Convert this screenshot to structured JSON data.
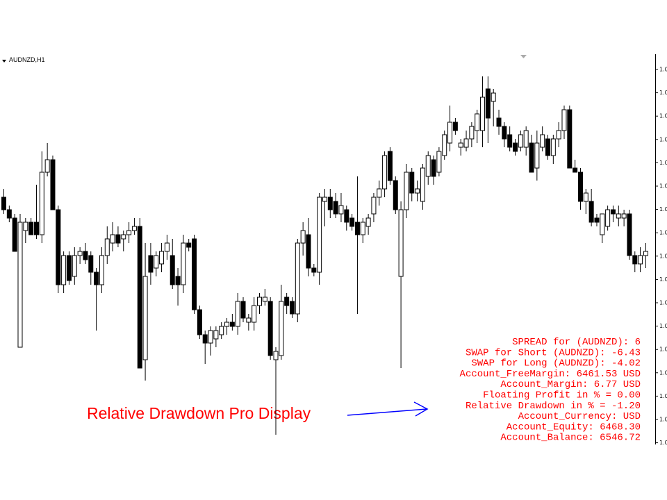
{
  "chart_data": {
    "type": "candlestick",
    "symbol": "AUDNZD,H1",
    "ylim": [
      0,
      100
    ],
    "ohlc": [
      [
        61,
        63,
        57,
        58
      ],
      [
        58,
        59,
        55,
        56
      ],
      [
        56,
        57,
        48,
        48
      ],
      [
        25,
        57,
        25,
        55
      ],
      [
        53,
        56,
        50,
        55
      ],
      [
        55,
        56,
        52,
        52
      ],
      [
        55,
        64,
        51,
        52
      ],
      [
        52,
        72,
        50,
        67
      ],
      [
        67,
        74,
        66,
        70
      ],
      [
        70,
        71,
        58,
        58
      ],
      [
        58,
        59,
        38,
        40
      ],
      [
        40,
        48,
        38,
        47
      ],
      [
        47,
        48,
        40,
        41
      ],
      [
        42,
        49,
        40,
        47
      ],
      [
        47,
        49,
        45,
        48
      ],
      [
        48,
        50,
        45,
        46
      ],
      [
        47,
        48,
        40,
        43
      ],
      [
        43,
        44,
        29,
        40
      ],
      [
        40,
        49,
        38,
        47
      ],
      [
        47,
        54,
        45,
        51
      ],
      [
        50,
        55,
        48,
        52
      ],
      [
        52,
        54,
        49,
        50
      ],
      [
        51,
        53,
        48,
        52
      ],
      [
        52,
        55,
        50,
        53
      ],
      [
        53,
        56,
        52,
        54
      ],
      [
        54,
        56,
        20,
        20
      ],
      [
        22,
        50,
        17,
        42
      ],
      [
        47,
        50,
        40,
        43
      ],
      [
        44,
        48,
        42,
        47
      ],
      [
        45,
        50,
        43,
        48
      ],
      [
        48,
        52,
        46,
        50
      ],
      [
        47,
        51,
        39,
        40
      ],
      [
        42,
        44,
        35,
        40
      ],
      [
        40,
        52,
        38,
        50
      ],
      [
        50,
        51,
        48,
        49
      ],
      [
        51,
        52,
        33,
        34
      ],
      [
        34,
        35,
        27,
        28
      ],
      [
        28,
        29,
        21,
        26
      ],
      [
        26,
        30,
        23,
        29
      ],
      [
        27,
        30,
        25,
        29
      ],
      [
        28,
        31,
        27,
        30
      ],
      [
        30,
        32,
        28,
        31
      ],
      [
        31,
        33,
        29,
        30
      ],
      [
        30,
        38,
        28,
        36
      ],
      [
        36,
        37,
        31,
        32
      ],
      [
        31,
        33,
        29,
        32
      ],
      [
        31,
        37,
        29,
        35
      ],
      [
        35,
        38,
        33,
        37
      ],
      [
        36,
        39,
        35,
        37
      ],
      [
        36,
        37,
        22,
        23
      ],
      [
        22,
        25,
        4,
        24
      ],
      [
        23,
        40,
        22,
        36
      ],
      [
        37,
        38,
        33,
        35
      ],
      [
        36,
        37,
        32,
        33
      ],
      [
        33,
        51,
        31,
        50
      ],
      [
        50,
        55,
        47,
        53
      ],
      [
        52,
        56,
        42,
        44
      ],
      [
        44,
        45,
        42,
        43
      ],
      [
        43,
        62,
        40,
        61
      ],
      [
        60,
        63,
        54,
        61
      ],
      [
        61,
        63,
        56,
        58
      ],
      [
        60,
        62,
        56,
        57
      ],
      [
        57,
        62,
        55,
        59
      ],
      [
        58,
        59,
        53,
        55
      ],
      [
        56,
        57,
        53,
        54
      ],
      [
        55,
        66,
        33,
        52
      ],
      [
        52,
        56,
        50,
        55
      ],
      [
        54,
        57,
        52,
        56
      ],
      [
        57,
        62,
        55,
        61
      ],
      [
        61,
        65,
        59,
        63
      ],
      [
        63,
        72,
        61,
        71
      ],
      [
        72,
        73,
        64,
        65
      ],
      [
        65,
        66,
        57,
        58
      ],
      [
        42,
        60,
        20,
        58
      ],
      [
        58,
        69,
        56,
        67
      ],
      [
        67,
        68,
        60,
        62
      ],
      [
        62,
        65,
        60,
        63
      ],
      [
        60,
        69,
        58,
        68
      ],
      [
        66,
        72,
        64,
        71
      ],
      [
        70,
        71,
        64,
        66
      ],
      [
        67,
        73,
        66,
        72
      ],
      [
        71,
        77,
        70,
        76
      ],
      [
        74,
        83,
        72,
        79
      ],
      [
        79,
        80,
        76,
        77
      ],
      [
        73,
        75,
        71,
        74
      ],
      [
        73,
        77,
        72,
        75
      ],
      [
        75,
        79,
        73,
        78
      ],
      [
        77,
        82,
        74,
        81
      ],
      [
        77,
        90,
        73,
        85
      ],
      [
        87,
        90,
        74,
        80
      ],
      [
        84,
        87,
        78,
        86
      ],
      [
        80,
        82,
        76,
        78
      ],
      [
        78,
        79,
        73,
        75
      ],
      [
        76,
        78,
        72,
        73
      ],
      [
        74,
        75,
        71,
        72
      ],
      [
        73,
        77,
        72,
        76
      ],
      [
        73,
        78,
        71,
        77
      ],
      [
        74,
        76,
        67,
        67
      ],
      [
        68,
        77,
        65,
        74
      ],
      [
        73,
        78,
        72,
        76
      ],
      [
        75,
        76,
        70,
        71
      ],
      [
        71,
        76,
        69,
        75
      ],
      [
        75,
        79,
        73,
        77
      ],
      [
        77,
        83,
        75,
        82
      ],
      [
        82,
        83,
        68,
        68
      ],
      [
        68,
        70,
        67,
        67
      ],
      [
        67,
        68,
        58,
        60
      ],
      [
        60,
        63,
        57,
        62
      ],
      [
        60,
        63,
        54,
        55
      ],
      [
        56,
        57,
        54,
        55
      ],
      [
        52,
        57,
        50,
        57
      ],
      [
        54,
        59,
        53,
        58
      ],
      [
        58,
        59,
        55,
        57
      ],
      [
        56,
        59,
        54,
        57
      ],
      [
        56,
        58,
        54,
        57
      ],
      [
        57,
        58,
        46,
        47
      ],
      [
        47,
        48,
        43,
        45
      ],
      [
        45,
        49,
        43,
        47
      ],
      [
        47,
        50,
        44,
        48
      ]
    ]
  },
  "price_axis_labels": [
    "1.0",
    "1.0",
    "1.0",
    "1.0",
    "1.0",
    "1.0",
    "1.0",
    "1.0",
    "1.0",
    "1.0",
    "1.0",
    "1.0",
    "1.0",
    "1.0",
    "1.0",
    "1.0",
    "1.0"
  ],
  "info_panel": [
    "SPREAD for (AUDNZD): 6",
    "SWAP for Short (AUDNZD): -6.43",
    "SWAP for Long (AUDNZD): -4.02",
    "Account_FreeMargin: 6461.53 USD",
    "Account_Margin: 6.77 USD",
    "Floating Profit in % = 0.00",
    "Relative Drawdown in % = -1.20",
    "Account_Currency: USD",
    "Account_Equity: 6468.30",
    "Account_Balance: 6546.72"
  ],
  "annotation": "Relative Drawdown Pro Display"
}
